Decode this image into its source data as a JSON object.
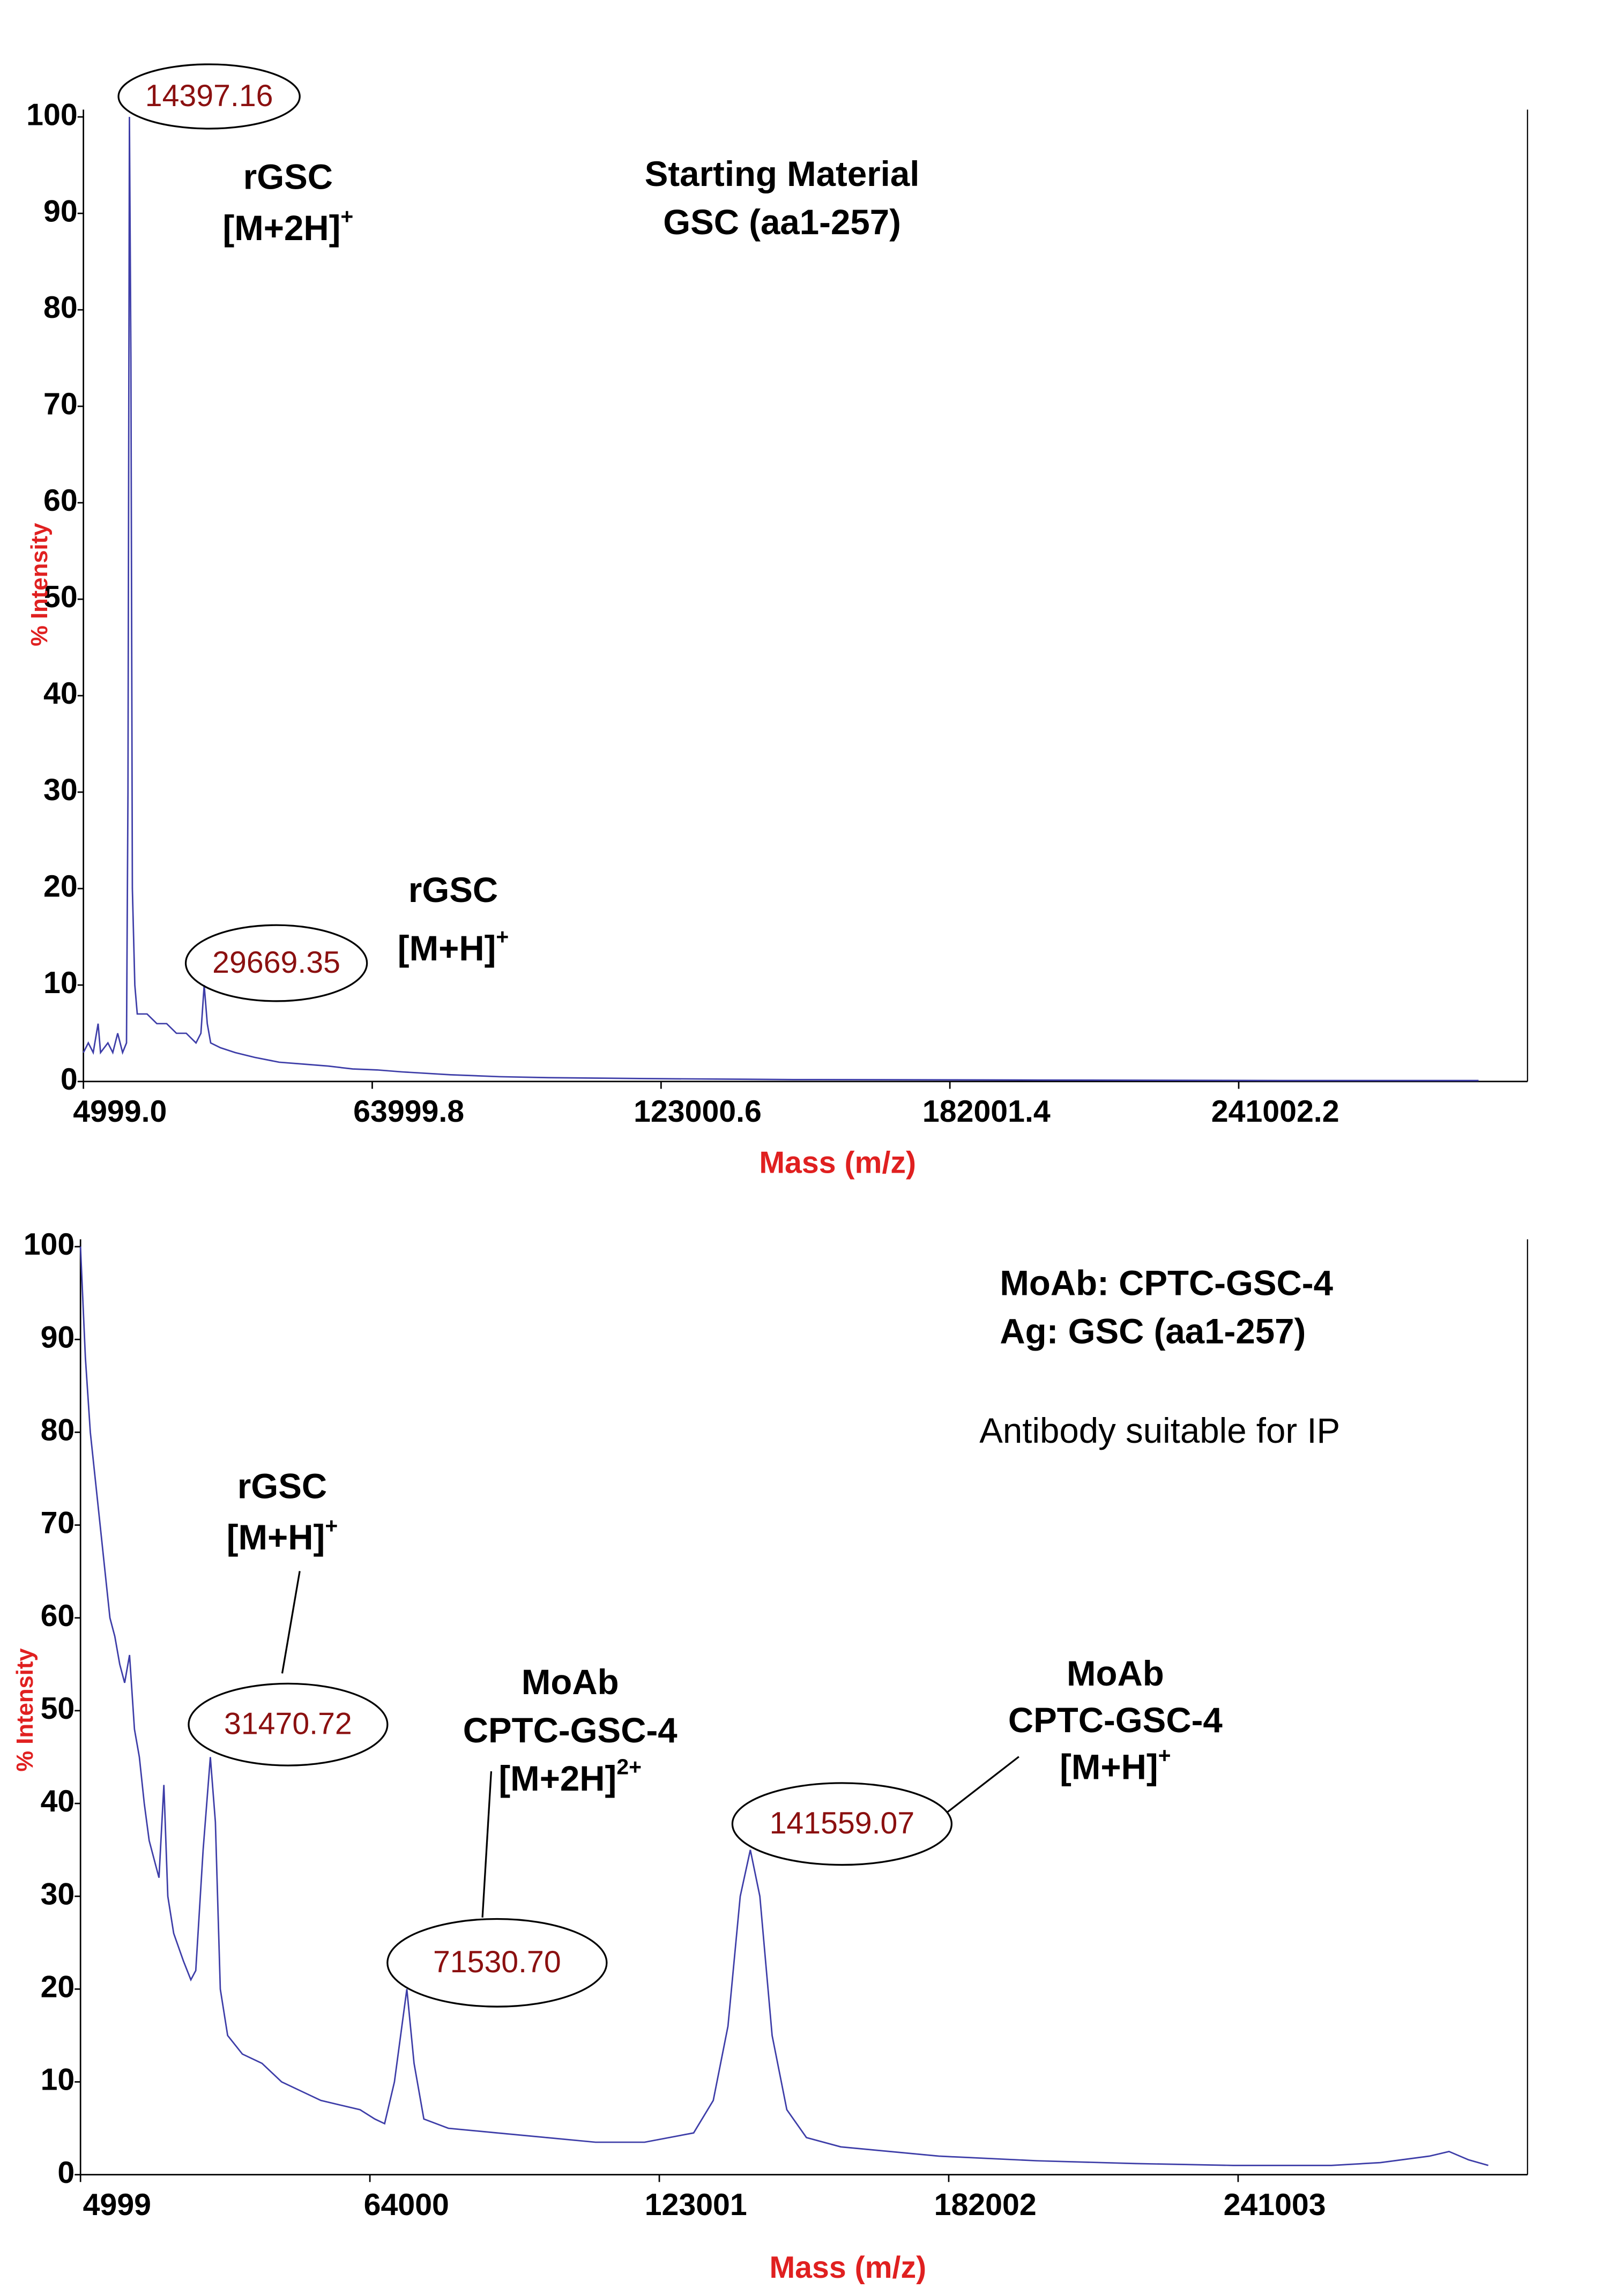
{
  "chart_data": [
    {
      "type": "line",
      "color": "#3d3da8",
      "ylabel": "% Intensity",
      "xlabel": "Mass (m/z)",
      "xlim": [
        4999,
        300000
      ],
      "ylim": [
        0,
        100
      ],
      "xticks": [
        {
          "value": 4999,
          "label": "4999.0"
        },
        63999.8,
        123000.6,
        182001.4,
        241002.2
      ],
      "yticks": [
        0,
        10,
        20,
        30,
        40,
        50,
        60,
        70,
        80,
        90,
        100
      ],
      "x": [
        4999,
        6000,
        7000,
        8000,
        8500,
        10000,
        11000,
        12000,
        13000,
        13800,
        14100,
        14397.16,
        14700,
        15000,
        15500,
        16000,
        18000,
        20000,
        22000,
        24000,
        26000,
        28000,
        29000,
        29669.35,
        30300,
        31000,
        33000,
        36000,
        40000,
        45000,
        50000,
        55000,
        60000,
        65000,
        70000,
        80000,
        90000,
        100000,
        120000,
        150000,
        200000,
        250000,
        290000
      ],
      "values": [
        3,
        4,
        3,
        6,
        3,
        4,
        3,
        5,
        3,
        4,
        30,
        100,
        75,
        20,
        10,
        7,
        7,
        6,
        6,
        5,
        5,
        4,
        5,
        10,
        6,
        4,
        3.5,
        3,
        2.5,
        2,
        1.8,
        1.6,
        1.3,
        1.2,
        1,
        0.7,
        0.5,
        0.4,
        0.3,
        0.2,
        0.15,
        0.1,
        0.1
      ],
      "peak_labels": [
        14397.16,
        29669.35
      ],
      "annotations": [
        {
          "lines": [
            {
              "text": "rGSC"
            },
            {
              "text": "[M+2H]",
              "sup": "+"
            }
          ]
        },
        {
          "lines": [
            {
              "text": "Starting Material"
            },
            {
              "text": "GSC (aa1-257)"
            }
          ]
        },
        {
          "lines": [
            {
              "text": "rGSC"
            },
            {
              "text": "[M+H]",
              "sup": "+"
            }
          ]
        }
      ]
    },
    {
      "type": "line",
      "color": "#3d3da8",
      "ylabel": "% Intensity",
      "xlabel": "Mass (m/z)",
      "xlim": [
        4999,
        300000
      ],
      "ylim": [
        0,
        100
      ],
      "xticks": [
        4999,
        64000,
        123001,
        182002,
        241003
      ],
      "yticks": [
        0,
        10,
        20,
        30,
        40,
        50,
        60,
        70,
        80,
        90,
        100
      ],
      "x": [
        4999,
        6000,
        7000,
        8000,
        9000,
        10000,
        11000,
        12000,
        13000,
        14000,
        15000,
        16000,
        17000,
        18000,
        19000,
        20000,
        21000,
        22000,
        22800,
        24000,
        26000,
        27500,
        28500,
        30000,
        31470.72,
        32500,
        33500,
        35000,
        38000,
        42000,
        46000,
        50000,
        54000,
        58000,
        62000,
        65000,
        67000,
        69000,
        71530.7,
        73000,
        75000,
        80000,
        90000,
        100000,
        110000,
        120000,
        130000,
        134000,
        137000,
        139500,
        141559.07,
        143500,
        146000,
        149000,
        153000,
        160000,
        170000,
        180000,
        200000,
        220000,
        240000,
        260000,
        270000,
        280000,
        284000,
        288000,
        292000
      ],
      "values": [
        100,
        88,
        80,
        75,
        70,
        65,
        60,
        58,
        55,
        53,
        56,
        48,
        45,
        40,
        36,
        34,
        32,
        42,
        30,
        26,
        23,
        21,
        22,
        35,
        45,
        38,
        20,
        15,
        13,
        12,
        10,
        9,
        8,
        7.5,
        7,
        6,
        5.5,
        10,
        20,
        12,
        6,
        5,
        4.5,
        4,
        3.5,
        3.5,
        4.5,
        8,
        16,
        30,
        35,
        30,
        15,
        7,
        4,
        3,
        2.5,
        2,
        1.5,
        1.2,
        1,
        1,
        1.3,
        2,
        2.5,
        1.6,
        1
      ],
      "peak_labels": [
        31470.72,
        {
          "value": 71530.7,
          "label": "71530.70"
        },
        141559.07
      ],
      "annotations": [
        {
          "lines": [
            {
              "text": "MoAb: CPTC-GSC-4"
            },
            {
              "text": "Ag: GSC (aa1-257)"
            }
          ]
        },
        {
          "lines": [
            {
              "text": "Antibody suitable for IP"
            }
          ]
        },
        {
          "lines": [
            {
              "text": "rGSC"
            },
            {
              "text": "[M+H]",
              "sup": "+"
            }
          ]
        },
        {
          "lines": [
            {
              "text": "MoAb"
            },
            {
              "text": "CPTC-GSC-4"
            },
            {
              "text": "[M+2H]",
              "sup": "2+"
            }
          ]
        },
        {
          "lines": [
            {
              "text": "MoAb"
            },
            {
              "text": "CPTC-GSC-4"
            },
            {
              "text": "[M+H]",
              "sup": "+"
            }
          ]
        }
      ]
    }
  ]
}
